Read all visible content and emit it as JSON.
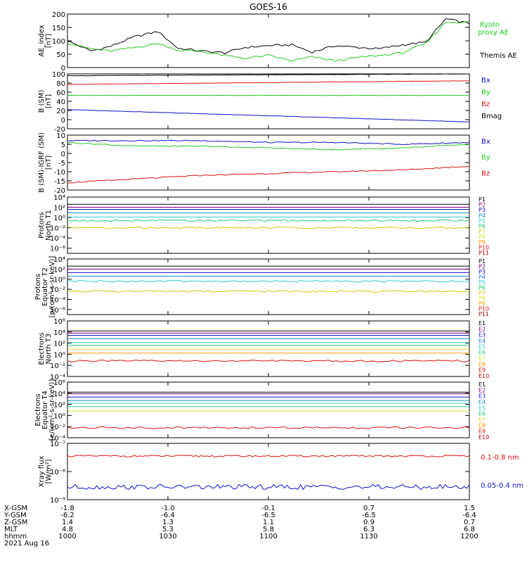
{
  "title": "GOES-16",
  "colors": {
    "black": "#000000",
    "red": "#dd1111",
    "green": "#22cc22",
    "blue": "#1111cc"
  },
  "chart_data": [
    {
      "type": "line",
      "panel": "ae",
      "ylabel": [
        "AE_index",
        "[nT]"
      ],
      "ylim": [
        0,
        200
      ],
      "yticks": [
        "0",
        "50",
        "100",
        "150",
        "200"
      ],
      "x": [
        0,
        7,
        13,
        20,
        27,
        33,
        40,
        47,
        53,
        60,
        67,
        73,
        80,
        87,
        93,
        100,
        107,
        113,
        120
      ],
      "series": [
        {
          "name": "Themis AE",
          "color": "#000000",
          "values": [
            100,
            62,
            80,
            115,
            135,
            72,
            62,
            55,
            75,
            82,
            85,
            58,
            82,
            75,
            70,
            85,
            95,
            182,
            165
          ]
        },
        {
          "name": "Kyoto proxy AE",
          "color": "#22cc22",
          "values": [
            92,
            70,
            62,
            75,
            90,
            65,
            60,
            45,
            35,
            45,
            25,
            40,
            25,
            38,
            45,
            55,
            90,
            170,
            170
          ]
        }
      ]
    },
    {
      "type": "line",
      "panel": "bsm",
      "ylabel": [
        "B (SM)",
        "[nT]"
      ],
      "ylim": [
        -20,
        100
      ],
      "yticks": [
        "-20",
        "0",
        "20",
        "40",
        "60",
        "80",
        "100"
      ],
      "x": [
        0,
        120
      ],
      "series": [
        {
          "name": "Bx",
          "color": "#1111cc",
          "values": [
            22,
            -5
          ]
        },
        {
          "name": "By",
          "color": "#22cc22",
          "values": [
            53,
            53
          ]
        },
        {
          "name": "Bz",
          "color": "#dd1111",
          "values": [
            77,
            85
          ]
        },
        {
          "name": "Bmag",
          "color": "#000000",
          "values": [
            96,
            100
          ]
        }
      ]
    },
    {
      "type": "line",
      "panel": "bigrf",
      "ylabel": [
        "B (SM)-IGRF (SM)",
        "[nT]"
      ],
      "ylim": [
        -20,
        10
      ],
      "yticks": [
        "-20",
        "-15",
        "-10",
        "-5",
        "0",
        "5",
        "10"
      ],
      "x": [
        0,
        20,
        40,
        60,
        80,
        100,
        120
      ],
      "series": [
        {
          "name": "Bx",
          "color": "#1111cc",
          "values": [
            7,
            7,
            7,
            6,
            6,
            5,
            6
          ]
        },
        {
          "name": "By",
          "color": "#22cc22",
          "values": [
            6,
            4,
            4,
            3,
            2,
            3,
            5
          ]
        },
        {
          "name": "Bz",
          "color": "#dd1111",
          "values": [
            -16,
            -14,
            -12,
            -11,
            -10,
            -9,
            -7
          ]
        }
      ]
    },
    {
      "type": "line",
      "panel": "protons_t1",
      "ylabel": [
        "Protons",
        "North T1"
      ],
      "scale": "log",
      "ylim": [
        -7,
        4
      ],
      "yticks": [
        "10⁴",
        "10²",
        "10⁰",
        "10⁻²",
        "10⁻⁴",
        "10⁻⁶"
      ],
      "channels": [
        {
          "name": "P1",
          "color": "#000000",
          "log10": 2.6
        },
        {
          "name": "P2",
          "color": "#770077",
          "log10": 2.0
        },
        {
          "name": "P3",
          "color": "#1111cc",
          "log10": 1.6
        },
        {
          "name": "P4",
          "color": "#1188cc",
          "log10": 0.9
        },
        {
          "name": "P5",
          "color": "#33cccc",
          "log10": 0.1
        },
        {
          "name": "P6",
          "color": "#22cc77",
          "log10": -0.6
        },
        {
          "name": "P7",
          "color": "#cccc00",
          "log10": -2.0
        },
        {
          "name": "P8",
          "color": "#dddd33",
          "log10": -99
        },
        {
          "name": "P9",
          "color": "#ff9900",
          "log10": -99
        },
        {
          "name": "P10",
          "color": "#dd1111",
          "log10": -99
        },
        {
          "name": "P11",
          "color": "#aa0000",
          "log10": -99
        }
      ]
    },
    {
      "type": "line",
      "panel": "protons_t2",
      "ylabel": [
        "Protons",
        "Equator T2",
        "[p/(cm²-s-sr-keV)]"
      ],
      "scale": "log",
      "ylim": [
        -7,
        4
      ],
      "yticks": [
        "10⁴",
        "10²",
        "10⁰",
        "10⁻²",
        "10⁻⁴",
        "10⁻⁶"
      ],
      "channels": [
        {
          "name": "P1",
          "color": "#000000",
          "log10": 2.6
        },
        {
          "name": "P2",
          "color": "#770077",
          "log10": 2.0
        },
        {
          "name": "P3",
          "color": "#1111cc",
          "log10": 1.3
        },
        {
          "name": "P4",
          "color": "#1188cc",
          "log10": 0.6
        },
        {
          "name": "P5",
          "color": "#33cccc",
          "log10": -0.4
        },
        {
          "name": "P6",
          "color": "#22cc77",
          "log10": -99
        },
        {
          "name": "P7",
          "color": "#cccc00",
          "log10": -2.4
        },
        {
          "name": "P8",
          "color": "#dddd33",
          "log10": -99
        },
        {
          "name": "P9",
          "color": "#ff9900",
          "log10": -99
        },
        {
          "name": "P10",
          "color": "#dd1111",
          "log10": -99
        },
        {
          "name": "P11",
          "color": "#aa0000",
          "log10": -99
        }
      ]
    },
    {
      "type": "line",
      "panel": "electrons_t3",
      "ylabel": [
        "Electrons",
        "North T3"
      ],
      "scale": "log",
      "ylim": [
        -4,
        6
      ],
      "yticks": [
        "10⁶",
        "10⁴",
        "10²",
        "10⁰",
        "10⁻²",
        "10⁻⁴"
      ],
      "channels": [
        {
          "name": "E1",
          "color": "#000000",
          "log10": 4.2
        },
        {
          "name": "E2",
          "color": "#770077",
          "log10": 3.8
        },
        {
          "name": "E3",
          "color": "#1111cc",
          "log10": 3.4
        },
        {
          "name": "E4",
          "color": "#1188cc",
          "log10": 2.8
        },
        {
          "name": "E5",
          "color": "#33cccc",
          "log10": 2.1
        },
        {
          "name": "E6",
          "color": "#22cc77",
          "log10": 1.6
        },
        {
          "name": "E7",
          "color": "#dddd33",
          "log10": 0.9
        },
        {
          "name": "E8",
          "color": "#ff9900",
          "log10": 0.2
        },
        {
          "name": "E9",
          "color": "#dd1111",
          "log10": -1.2
        },
        {
          "name": "E10",
          "color": "#aa0000",
          "log10": -99
        }
      ]
    },
    {
      "type": "line",
      "panel": "electrons_t4",
      "ylabel": [
        "Electrons",
        "Equator T4",
        "[e/(cm²-s-sr-keV)]"
      ],
      "scale": "log",
      "ylim": [
        -4,
        6
      ],
      "yticks": [
        "10⁶",
        "10⁴",
        "10²",
        "10⁰",
        "10⁻²",
        "10⁻⁴"
      ],
      "channels": [
        {
          "name": "E1",
          "color": "#000000",
          "log10": 4.2
        },
        {
          "name": "E2",
          "color": "#770077",
          "log10": 3.9
        },
        {
          "name": "E3",
          "color": "#1111cc",
          "log10": 3.3
        },
        {
          "name": "E4",
          "color": "#1188cc",
          "log10": 2.7
        },
        {
          "name": "E5",
          "color": "#33cccc",
          "log10": 2.2
        },
        {
          "name": "E6",
          "color": "#22cc77",
          "log10": 1.6
        },
        {
          "name": "E7",
          "color": "#dddd33",
          "log10": 0.8
        },
        {
          "name": "E8",
          "color": "#ff9900",
          "log10": -99
        },
        {
          "name": "E9",
          "color": "#dd1111",
          "log10": -2.2
        },
        {
          "name": "E10",
          "color": "#aa0000",
          "log10": -99
        }
      ]
    },
    {
      "type": "line",
      "panel": "xray",
      "ylabel": [
        "Xray flux",
        "[W/m²]"
      ],
      "scale": "log",
      "ylim": [
        -9,
        -7
      ],
      "yticks": [
        "10⁻⁷",
        "10⁻⁸",
        "10⁻⁹"
      ],
      "series": [
        {
          "name": "0.1-0.8 nm",
          "color": "#dd1111",
          "log10": -7.45
        },
        {
          "name": "0.05-0.4 nm",
          "color": "#1111cc",
          "log10": -8.55
        }
      ]
    }
  ],
  "xaxis": {
    "rows": [
      {
        "label": "X-GSM",
        "values": [
          "-1.8",
          "-1.0",
          "-0.1",
          "0.7",
          "1.5"
        ]
      },
      {
        "label": "Y-GSM",
        "values": [
          "-6.2",
          "-6.4",
          "-6.5",
          "-6.5",
          "-6.4"
        ]
      },
      {
        "label": "Z-GSM",
        "values": [
          "1.4",
          "1.3",
          "1.1",
          "0.9",
          "0.7"
        ]
      },
      {
        "label": "MLT",
        "values": [
          "4.8",
          "5.3",
          "5.8",
          "6.3",
          "6.8"
        ]
      },
      {
        "label": "hhmm",
        "values": [
          "1000",
          "1030",
          "1100",
          "1130",
          "1200"
        ]
      }
    ],
    "date": "2021 Aug 16"
  }
}
